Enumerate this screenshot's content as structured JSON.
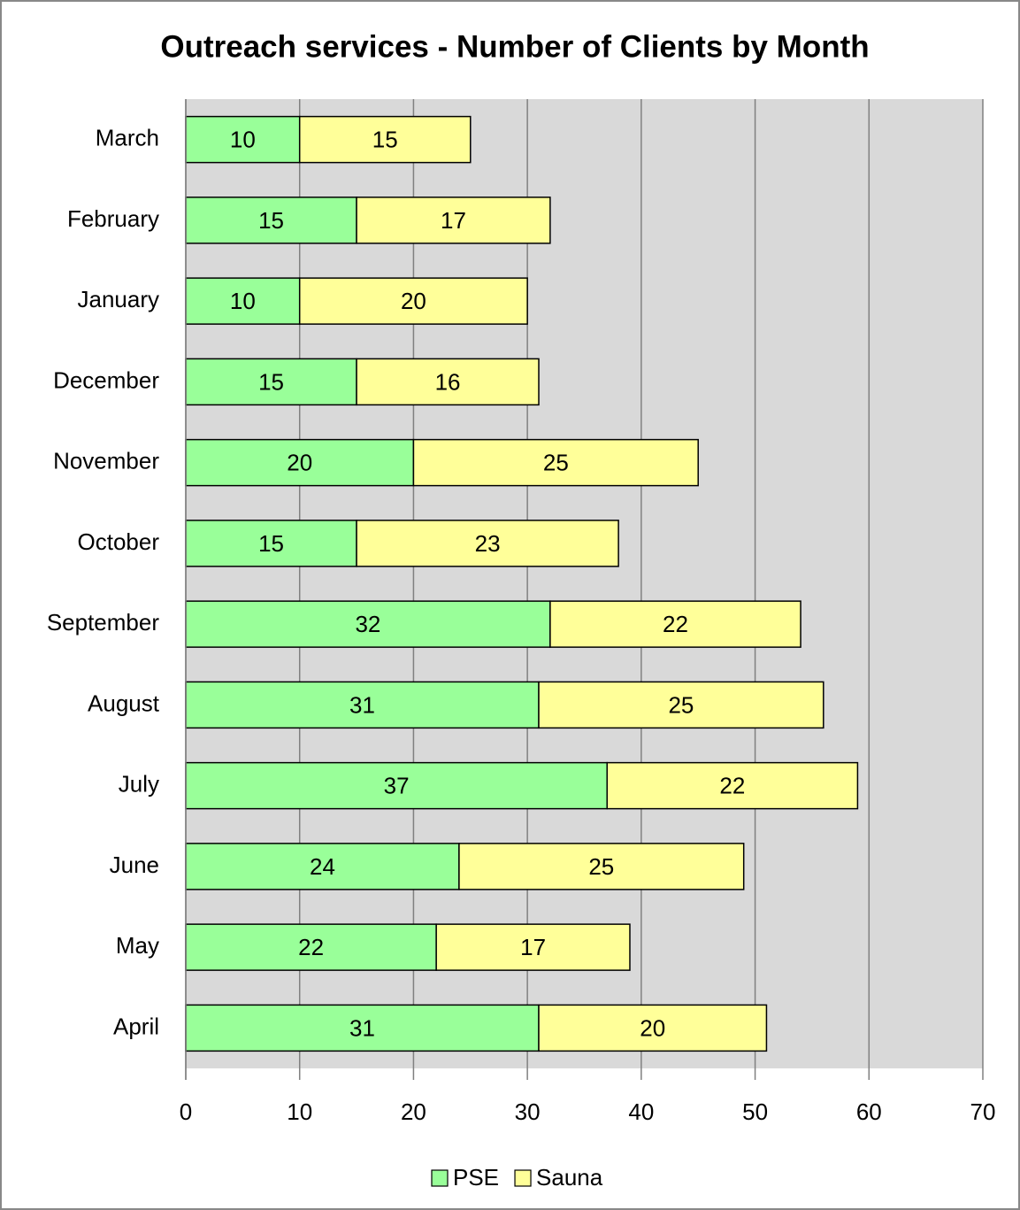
{
  "chart_data": {
    "type": "bar",
    "orientation": "horizontal",
    "stacked": true,
    "title": "Outreach services - Number of Clients by Month",
    "categories": [
      "March",
      "February",
      "January",
      "December",
      "November",
      "October",
      "September",
      "August",
      "July",
      "June",
      "May",
      "April"
    ],
    "series": [
      {
        "name": "PSE",
        "color": "#99ff99",
        "values": [
          10,
          15,
          10,
          15,
          20,
          15,
          32,
          31,
          37,
          24,
          22,
          31
        ]
      },
      {
        "name": "Sauna",
        "color": "#ffff99",
        "values": [
          15,
          17,
          20,
          16,
          25,
          23,
          22,
          25,
          22,
          25,
          17,
          20
        ]
      }
    ],
    "xlim": [
      0,
      70
    ],
    "xticks": [
      0,
      10,
      20,
      30,
      40,
      50,
      60,
      70
    ],
    "grid": true,
    "legend": "bottom"
  }
}
